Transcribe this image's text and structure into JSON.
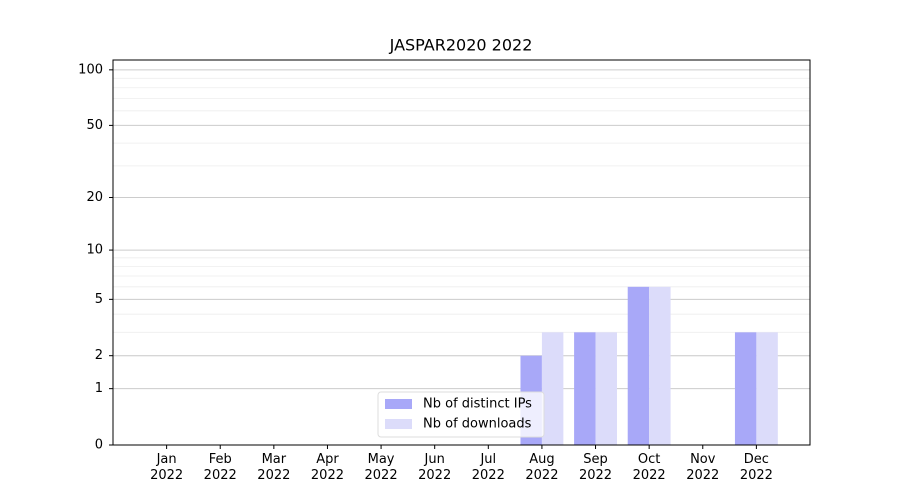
{
  "chart_data": {
    "type": "bar",
    "title": "JASPAR2020 2022",
    "categories": [
      "Jan\n2022",
      "Feb\n2022",
      "Mar\n2022",
      "Apr\n2022",
      "May\n2022",
      "Jun\n2022",
      "Jul\n2022",
      "Aug\n2022",
      "Sep\n2022",
      "Oct\n2022",
      "Nov\n2022",
      "Dec\n2022"
    ],
    "series": [
      {
        "name": "Nb of distinct IPs",
        "color": "#a8a8f8",
        "values": [
          0,
          0,
          0,
          0,
          0,
          0,
          0,
          2,
          3,
          6,
          0,
          3
        ]
      },
      {
        "name": "Nb of downloads",
        "color": "#dcdcfa",
        "values": [
          0,
          0,
          0,
          0,
          0,
          0,
          0,
          3,
          3,
          6,
          0,
          3
        ]
      }
    ],
    "yscale": "symlog",
    "ylim": [
      0,
      113
    ],
    "yticks": [
      0,
      1,
      2,
      5,
      10,
      20,
      50,
      100
    ],
    "grid": true,
    "legend": "lower center"
  }
}
